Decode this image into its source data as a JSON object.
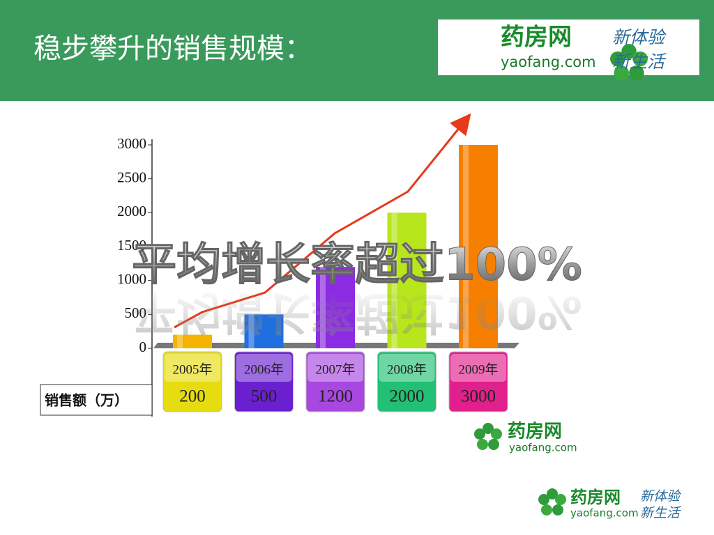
{
  "header": {
    "title": "稳步攀升的销售规模："
  },
  "logo": {
    "brand": "药房网",
    "domain": "yaofang.com",
    "slogan1": "新体验",
    "slogan2": "新生活"
  },
  "chart_data": {
    "type": "bar",
    "categories": [
      "2005年",
      "2006年",
      "2007年",
      "2008年",
      "2009年"
    ],
    "values": [
      200,
      500,
      1200,
      2000,
      3000
    ],
    "colors": [
      "#f4b400",
      "#1f6fe0",
      "#8b2be2",
      "#b8e61d",
      "#f77f00"
    ],
    "cell_colors": [
      "#e6dc10",
      "#6a20d0",
      "#a848e0",
      "#22c074",
      "#e0208c"
    ],
    "ylim": [
      0,
      3000
    ],
    "yticks": [
      0,
      500,
      1000,
      1500,
      2000,
      2500,
      3000
    ],
    "y_label": "销售额（万）",
    "annotation": "平均增长率超过100%"
  }
}
